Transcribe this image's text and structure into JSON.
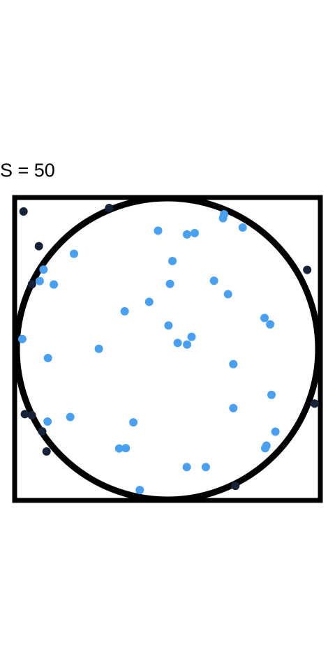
{
  "label": "S = 50",
  "colors": {
    "inside": "#4aa0f0",
    "outside": "#152238",
    "frame": "#000000",
    "background": "#ffffff"
  },
  "points": {
    "inside": [
      [
        -0.0624,
        0.7848
      ],
      [
        0.1292,
        0.7599
      ],
      [
        0.1804,
        0.7683
      ],
      [
        0.3683,
        0.8678
      ],
      [
        0.3748,
        0.8933
      ],
      [
        0.4984,
        0.8057
      ],
      [
        -0.6203,
        0.6314
      ],
      [
        -0.8224,
        0.5262
      ],
      [
        -0.8475,
        0.4498
      ],
      [
        -0.7542,
        0.4278
      ],
      [
        0.033,
        0.5833
      ],
      [
        0.0168,
        0.4318
      ],
      [
        0.3085,
        0.4526
      ],
      [
        0.4014,
        0.3634
      ],
      [
        0.6434,
        0.2054
      ],
      [
        0.681,
        0.1628
      ],
      [
        -0.2839,
        0.2502
      ],
      [
        -0.1213,
        0.3123
      ],
      [
        0.0067,
        0.1557
      ],
      [
        0.1596,
        0.0806
      ],
      [
        0.0678,
        0.04
      ],
      [
        0.1299,
        0.0297
      ],
      [
        -0.9636,
        0.0663
      ],
      [
        -0.4555,
        0.0013
      ],
      [
        -0.7929,
        -0.0602
      ],
      [
        0.4365,
        -0.1009
      ],
      [
        0.6896,
        -0.3048
      ],
      [
        0.4365,
        -0.3925
      ],
      [
        -0.7956,
        -0.4813
      ],
      [
        -0.6447,
        -0.4514
      ],
      [
        -0.2266,
        -0.4868
      ],
      [
        -0.3202,
        -0.6602
      ],
      [
        -0.2769,
        -0.6578
      ],
      [
        0.7158,
        -0.5487
      ],
      [
        0.6563,
        -0.6412
      ],
      [
        0.6481,
        -0.6585
      ],
      [
        0.1279,
        -0.7839
      ],
      [
        0.2541,
        -0.7839
      ],
      [
        -0.1837,
        -0.9356
      ]
    ],
    "outside": [
      [
        -0.9551,
        0.9119
      ],
      [
        -0.3872,
        0.9354
      ],
      [
        -0.8534,
        0.6813
      ],
      [
        0.927,
        0.5248
      ],
      [
        -0.8993,
        0.4296
      ],
      [
        0.9759,
        -0.362
      ],
      [
        -0.9463,
        -0.4325
      ],
      [
        -0.8308,
        -0.5469
      ],
      [
        -0.8025,
        -0.6802
      ],
      [
        0.4504,
        -0.9081
      ],
      [
        -0.9,
        -0.44
      ]
    ]
  }
}
